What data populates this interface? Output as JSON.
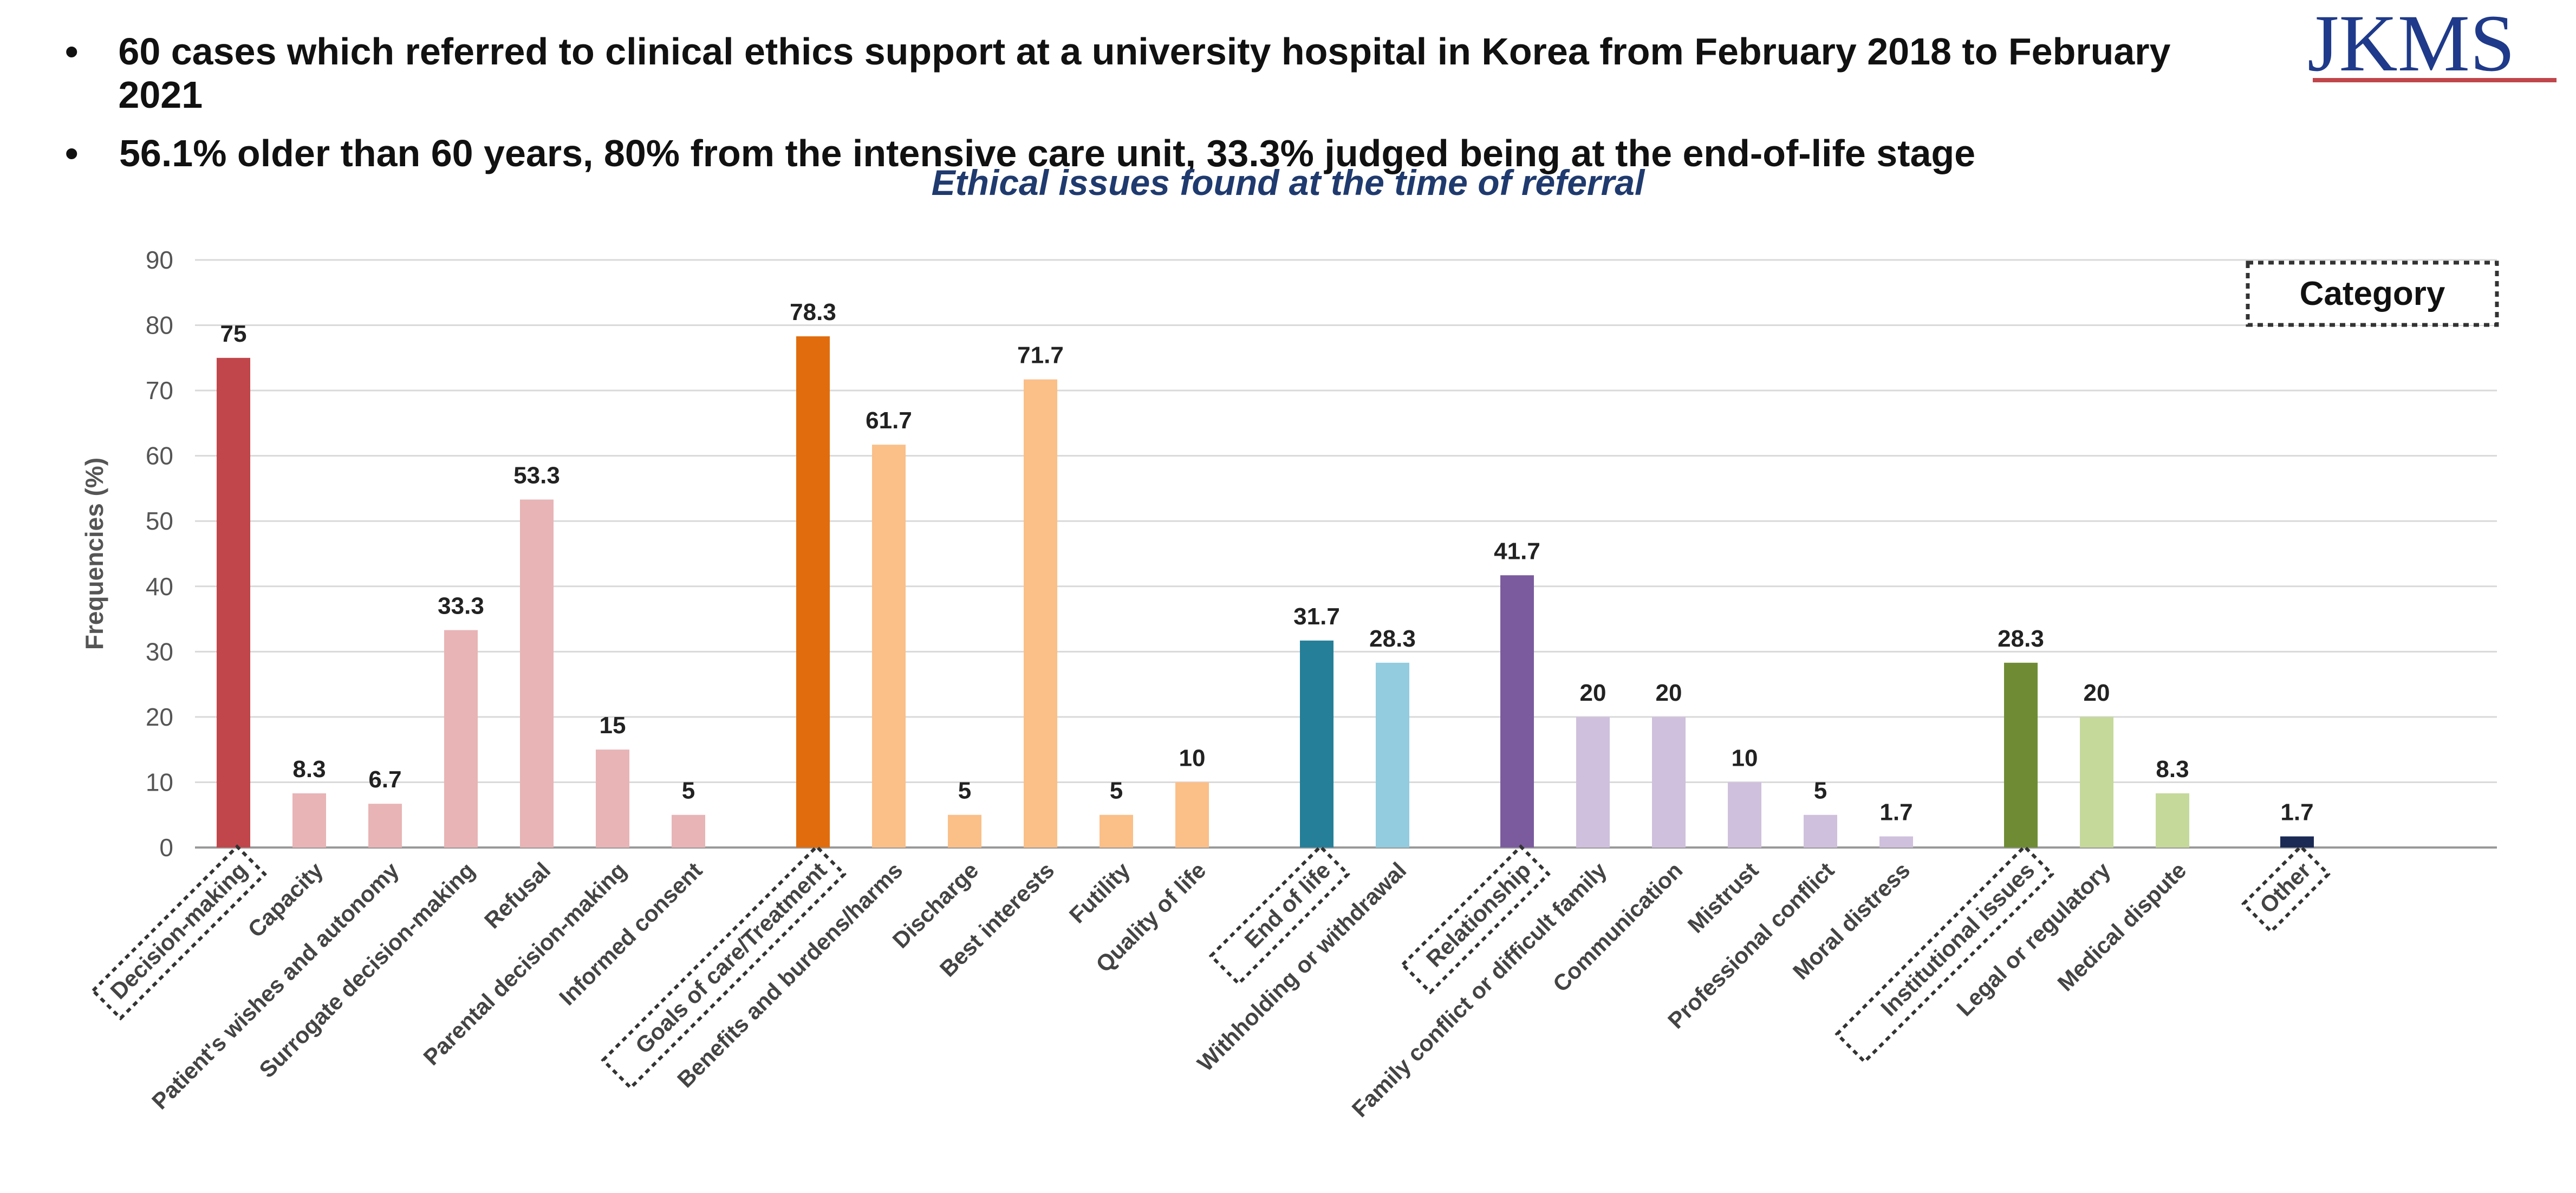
{
  "header": {
    "bullets": [
      "60 cases which referred to clinical ethics support at a university hospital in Korea from February 2018 to February 2021",
      "56.1% older than 60 years, 80% from the intensive care unit, 33.3% judged being at the end-of-life stage"
    ],
    "logo_text": "JKMS"
  },
  "chart_data": {
    "type": "bar",
    "title": "Ethical issues found at the time of referral",
    "ylabel": "Frequencies (%)",
    "xlabel": "",
    "ylim": [
      0,
      90
    ],
    "yticks": [
      0,
      10,
      20,
      30,
      40,
      50,
      60,
      70,
      80,
      90
    ],
    "grid": true,
    "legend_box_label": "Category",
    "categories": [
      "Decision-making",
      "Capacity",
      "Patient's wishes and autonomy",
      "Surrogate decision-making",
      "Refusal",
      "Parental decision-making",
      "Informed consent",
      "Goals of care/Treatment",
      "Benefits and burdens/harms",
      "Discharge",
      "Best interests",
      "Futility",
      "Quality of life",
      "End of life",
      "Withholding or withdrawal",
      "Relationship",
      "Family conflict or difficult family",
      "Communication",
      "Mistrust",
      "Professional conflict",
      "Moral distress",
      "Institutional issues",
      "Legal or regulatory",
      "Medical dispute",
      "Other"
    ],
    "values": [
      75,
      8.3,
      6.7,
      33.3,
      53.3,
      15,
      5,
      78.3,
      61.7,
      5,
      71.7,
      5,
      10,
      31.7,
      28.3,
      41.7,
      20,
      20,
      10,
      5,
      1.7,
      28.3,
      20,
      8.3,
      1.7
    ],
    "value_labels": [
      "75",
      "8.3",
      "6.7",
      "33.3",
      "53.3",
      "15",
      "5",
      "78.3",
      "61.7",
      "5",
      "71.7",
      "5",
      "10",
      "31.7",
      "28.3",
      "41.7",
      "20",
      "20",
      "10",
      "5",
      "1.7",
      "28.3",
      "20",
      "8.3",
      "1.7"
    ],
    "is_category_header": [
      true,
      false,
      false,
      false,
      false,
      false,
      false,
      true,
      false,
      false,
      false,
      false,
      false,
      true,
      false,
      true,
      false,
      false,
      false,
      false,
      false,
      true,
      false,
      false,
      true
    ],
    "colors": [
      "#c0464b",
      "#e8b4b6",
      "#e8b4b6",
      "#e8b4b6",
      "#e8b4b6",
      "#e8b4b6",
      "#e8b4b6",
      "#e06c0e",
      "#fbbf88",
      "#fbbf88",
      "#fbbf88",
      "#fbbf88",
      "#fbbf88",
      "#257f98",
      "#92ccde",
      "#7b5b9e",
      "#cfc0dd",
      "#cfc0dd",
      "#cfc0dd",
      "#cfc0dd",
      "#cfc0dd",
      "#6f8c35",
      "#c5d99a",
      "#c5d99a",
      "#1b2a55"
    ],
    "title_color": "#1f3a6e"
  }
}
